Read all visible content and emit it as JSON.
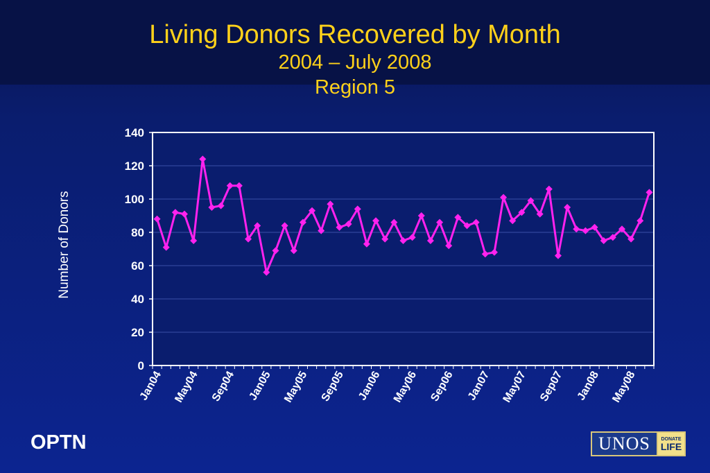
{
  "title": {
    "main": "Living Donors Recovered by Month",
    "sub1": "2004 – July 2008",
    "sub2": "Region 5"
  },
  "footer": {
    "optn": "OPTN",
    "logo_text": "UNOS",
    "logo_badge_top": "DONATE",
    "logo_badge_bottom": "LIFE"
  },
  "colors": {
    "series": "#ff22ee",
    "plot_background": "#0a1d6e",
    "axis": "#ffffff",
    "title": "#ffd11a"
  },
  "chart_data": {
    "type": "line",
    "ylabel": "Number of Donors",
    "xlabel": "",
    "ylim": [
      0,
      140
    ],
    "yticks": [
      0,
      20,
      40,
      60,
      80,
      100,
      120,
      140
    ],
    "grid": true,
    "x_tick_labels": [
      "Jan04",
      "May04",
      "Sep04",
      "Jan05",
      "May05",
      "Sep05",
      "Jan06",
      "May06",
      "Sep06",
      "Jan07",
      "May07",
      "Sep07",
      "Jan08",
      "May08"
    ],
    "x": [
      "Jan04",
      "Feb04",
      "Mar04",
      "Apr04",
      "May04",
      "Jun04",
      "Jul04",
      "Aug04",
      "Sep04",
      "Oct04",
      "Nov04",
      "Dec04",
      "Jan05",
      "Feb05",
      "Mar05",
      "Apr05",
      "May05",
      "Jun05",
      "Jul05",
      "Aug05",
      "Sep05",
      "Oct05",
      "Nov05",
      "Dec05",
      "Jan06",
      "Feb06",
      "Mar06",
      "Apr06",
      "May06",
      "Jun06",
      "Jul06",
      "Aug06",
      "Sep06",
      "Oct06",
      "Nov06",
      "Dec06",
      "Jan07",
      "Feb07",
      "Mar07",
      "Apr07",
      "May07",
      "Jun07",
      "Jul07",
      "Aug07",
      "Sep07",
      "Oct07",
      "Nov07",
      "Dec07",
      "Jan08",
      "Feb08",
      "Mar08",
      "Apr08",
      "May08",
      "Jun08",
      "Jul08"
    ],
    "values": [
      88,
      71,
      92,
      91,
      75,
      124,
      95,
      96,
      108,
      108,
      76,
      84,
      56,
      69,
      84,
      69,
      86,
      93,
      81,
      97,
      83,
      85,
      94,
      73,
      87,
      76,
      86,
      75,
      77,
      90,
      75,
      86,
      72,
      89,
      84,
      86,
      67,
      68,
      101,
      87,
      92,
      99,
      91,
      106,
      66,
      95,
      82,
      81,
      83,
      75,
      77,
      82,
      76,
      87,
      104
    ]
  }
}
